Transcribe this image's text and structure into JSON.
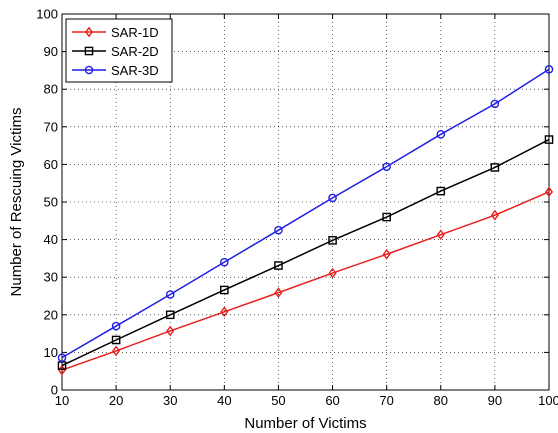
{
  "chart_data": {
    "type": "line",
    "title": "",
    "xlabel": "Number of Victims",
    "ylabel": "Number of Rescuing Victims",
    "xlim": [
      10,
      100
    ],
    "ylim": [
      0,
      100
    ],
    "xticks": [
      10,
      20,
      30,
      40,
      50,
      60,
      70,
      80,
      90,
      100
    ],
    "yticks": [
      0,
      10,
      20,
      30,
      40,
      50,
      60,
      70,
      80,
      90,
      100
    ],
    "grid": true,
    "legend_position": "top-left",
    "x": [
      10,
      20,
      30,
      40,
      50,
      60,
      70,
      80,
      90,
      100
    ],
    "series": [
      {
        "name": "SAR-1D",
        "color": "#e8201f",
        "marker": "diamond",
        "values": [
          5.3,
          10.4,
          15.7,
          20.8,
          25.9,
          31.1,
          36.1,
          41.3,
          46.5,
          52.7
        ]
      },
      {
        "name": "SAR-2D",
        "color": "#000000",
        "marker": "square",
        "values": [
          6.5,
          13.3,
          20.0,
          26.6,
          33.1,
          39.8,
          46.0,
          52.9,
          59.2,
          66.6
        ]
      },
      {
        "name": "SAR-3D",
        "color": "#1f1fe6",
        "marker": "circle",
        "values": [
          8.6,
          17.0,
          25.4,
          34.0,
          42.5,
          51.1,
          59.4,
          68.0,
          76.1,
          85.3
        ]
      }
    ]
  }
}
